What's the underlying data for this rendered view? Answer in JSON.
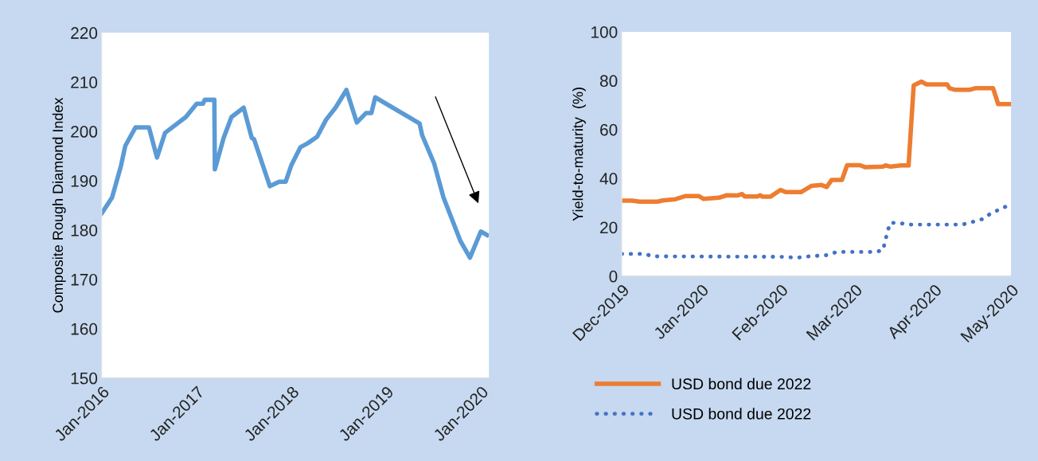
{
  "chart_data": [
    {
      "type": "line",
      "ylabel": "Composite Rough Diamond Index",
      "xlim": [
        "2016-01-01",
        "2020-02-01"
      ],
      "ylim": [
        150,
        220
      ],
      "yticks": [
        150,
        160,
        170,
        180,
        190,
        200,
        210,
        220
      ],
      "xticks": [
        {
          "value": "2016-01-01",
          "label": "Jan-2016"
        },
        {
          "value": "2017-01-01",
          "label": "Jan-2017"
        },
        {
          "value": "2018-01-01",
          "label": "Jan-2018"
        },
        {
          "value": "2019-01-01",
          "label": "Jan-2019"
        },
        {
          "value": "2020-01-01",
          "label": "Jan-2020"
        }
      ],
      "grid": false,
      "legend": false,
      "marker": "none",
      "line_style": "solid",
      "series": [
        {
          "color": "#5b9bd5",
          "x": [
            "2016-01-01",
            "2016-02-10",
            "2016-03-15",
            "2016-04-01",
            "2016-05-10",
            "2016-07-01",
            "2016-08-01",
            "2016-09-01",
            "2016-11-20",
            "2017-01-01",
            "2017-01-25",
            "2017-02-01",
            "2017-03-10",
            "2017-03-12",
            "2017-04-15",
            "2017-05-15",
            "2017-07-01",
            "2017-08-01",
            "2017-08-10",
            "2017-10-10",
            "2017-11-15",
            "2017-12-10",
            "2018-01-01",
            "2018-02-05",
            "2018-03-05",
            "2018-04-10",
            "2018-05-15",
            "2018-06-20",
            "2018-08-01",
            "2018-09-10",
            "2018-10-15",
            "2018-11-05",
            "2018-11-20",
            "2019-05-10",
            "2019-05-20",
            "2019-07-05",
            "2019-08-10",
            "2019-10-15",
            "2019-11-20",
            "2020-01-01",
            "2020-01-25"
          ],
          "values": [
            183.4,
            186.6,
            193,
            197.1,
            200.8,
            200.8,
            194.7,
            199.7,
            202.9,
            205.6,
            205.6,
            206.4,
            206.4,
            192.3,
            198.7,
            202.9,
            204.8,
            198.7,
            198.4,
            188.9,
            189.8,
            189.8,
            193.2,
            196.8,
            197.6,
            198.9,
            202.4,
            204.8,
            208.4,
            201.8,
            203.7,
            203.7,
            206.9,
            201.6,
            199.2,
            193.5,
            186.6,
            177.7,
            174.4,
            179.7,
            179
          ]
        }
      ]
    },
    {
      "type": "line",
      "ylabel": "Yield-to-maturity  (%)",
      "xlim": [
        "2019-12-01",
        "2020-05-01"
      ],
      "ylim": [
        0,
        100
      ],
      "yticks": [
        0,
        20,
        40,
        60,
        80,
        100
      ],
      "xticks": [
        {
          "value": "2019-12-01",
          "label": "Dec-2019"
        },
        {
          "value": "2020-01-01",
          "label": "Jan-2020"
        },
        {
          "value": "2020-02-01",
          "label": "Feb-2020"
        },
        {
          "value": "2020-03-01",
          "label": "Mar-2020"
        },
        {
          "value": "2020-04-01",
          "label": "Apr-2020"
        },
        {
          "value": "2020-05-01",
          "label": "May-2020"
        }
      ],
      "grid": false,
      "legend": "bottom",
      "marker": "none",
      "series": [
        {
          "name": "USD bond due 2022",
          "color": "#ed7d31",
          "line_style": "solid",
          "x": [
            "2019-12-01",
            "2019-12-05",
            "2019-12-08",
            "2019-12-15",
            "2019-12-17",
            "2019-12-22",
            "2019-12-26",
            "2019-12-31",
            "2020-01-02",
            "2020-01-08",
            "2020-01-11",
            "2020-01-15",
            "2020-01-17",
            "2020-01-18",
            "2020-01-23",
            "2020-01-24",
            "2020-01-25",
            "2020-01-28",
            "2020-02-01",
            "2020-02-03",
            "2020-02-09",
            "2020-02-10",
            "2020-02-13",
            "2020-02-17",
            "2020-02-19",
            "2020-02-21",
            "2020-02-25",
            "2020-02-27",
            "2020-03-03",
            "2020-03-05",
            "2020-03-12",
            "2020-03-13",
            "2020-03-15",
            "2020-03-19",
            "2020-03-22",
            "2020-03-24",
            "2020-03-27",
            "2020-03-29",
            "2020-04-06",
            "2020-04-07",
            "2020-04-09",
            "2020-04-15",
            "2020-04-17",
            "2020-04-24",
            "2020-04-26",
            "2020-05-01"
          ],
          "values": [
            30.9,
            30.9,
            30.5,
            30.5,
            31,
            31.5,
            32.8,
            32.8,
            31.6,
            32.1,
            33.1,
            33,
            33.6,
            32.6,
            32.6,
            33.1,
            32.5,
            32.5,
            35.3,
            34.4,
            34.4,
            35,
            36.9,
            37.3,
            36.5,
            39.4,
            39.4,
            45.4,
            45.4,
            44.6,
            44.8,
            45.3,
            44.8,
            45.3,
            45.3,
            78.1,
            79.6,
            78.5,
            78.5,
            76.9,
            76.3,
            76.3,
            76.9,
            76.9,
            70.4,
            70.4
          ]
        },
        {
          "name": "USD bond due 2022",
          "color": "#4472c4",
          "line_style": "dotted",
          "x": [
            "2019-12-01",
            "2019-12-10",
            "2019-12-13",
            "2020-02-03",
            "2020-02-07",
            "2020-02-12",
            "2020-02-19",
            "2020-02-23",
            "2020-03-09",
            "2020-03-12",
            "2020-03-13",
            "2020-03-14",
            "2020-03-15",
            "2020-03-19",
            "2020-03-23",
            "2020-04-12",
            "2020-04-15",
            "2020-04-20",
            "2020-04-23",
            "2020-04-29"
          ],
          "values": [
            9.1,
            9.1,
            8.1,
            7.9,
            7.5,
            8.1,
            8.6,
            9.9,
            9.9,
            10.6,
            15,
            19.1,
            21.9,
            21.6,
            21.1,
            21.1,
            21.9,
            23.4,
            25.6,
            28.5
          ]
        }
      ]
    }
  ]
}
